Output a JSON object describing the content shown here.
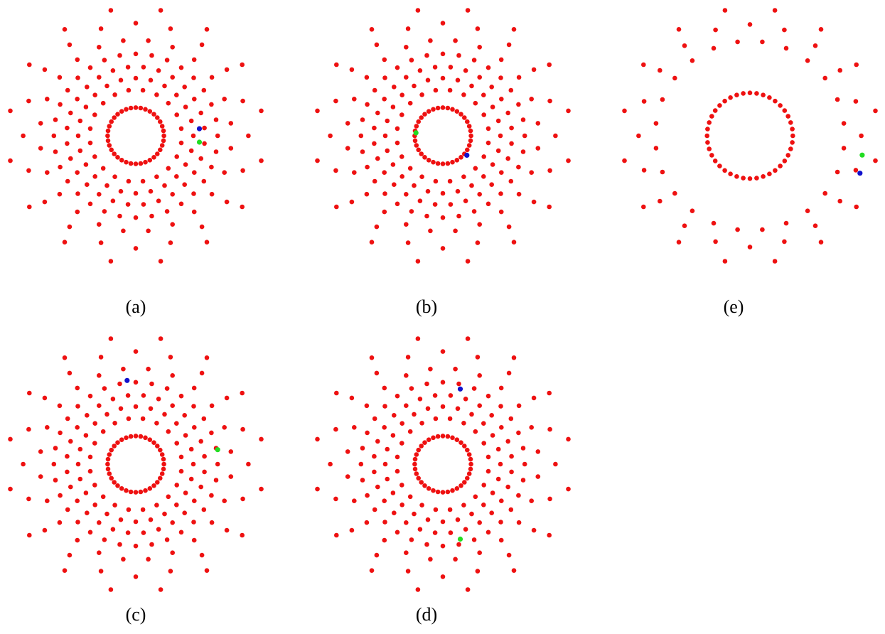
{
  "figure": {
    "panels": [
      {
        "id": "a",
        "label": "(a)",
        "inner_ring": {
          "count": 36,
          "radius": 0.22
        },
        "outer_rings": [
          {
            "radius": 0.36,
            "count": 20,
            "phase": 0.5
          },
          {
            "radius": 0.45,
            "count": 24,
            "phase": 0
          },
          {
            "radius": 0.54,
            "count": 28,
            "phase": 0.5
          },
          {
            "radius": 0.64,
            "count": 32,
            "phase": 0
          },
          {
            "radius": 0.75,
            "count": 24,
            "phase": 0.5
          },
          {
            "radius": 0.88,
            "count": 20,
            "phase": 0
          },
          {
            "radius": 1.0,
            "count": 16,
            "phase": 0.5
          }
        ],
        "markers": [
          {
            "color": "blue",
            "x": 0.497,
            "y": -0.055
          },
          {
            "color": "green",
            "x": 0.497,
            "y": 0.05
          }
        ]
      },
      {
        "id": "b",
        "label": "(b)",
        "inner_ring": {
          "count": 36,
          "radius": 0.22
        },
        "outer_rings": [
          {
            "radius": 0.36,
            "count": 20,
            "phase": 0.5
          },
          {
            "radius": 0.45,
            "count": 24,
            "phase": 0
          },
          {
            "radius": 0.54,
            "count": 28,
            "phase": 0.5
          },
          {
            "radius": 0.64,
            "count": 32,
            "phase": 0
          },
          {
            "radius": 0.75,
            "count": 24,
            "phase": 0.5
          },
          {
            "radius": 0.88,
            "count": 20,
            "phase": 0
          },
          {
            "radius": 1.0,
            "count": 16,
            "phase": 0.5
          }
        ],
        "markers": [
          {
            "color": "green",
            "x": -0.21,
            "y": -0.023
          },
          {
            "color": "blue",
            "x": 0.188,
            "y": 0.152
          }
        ]
      },
      {
        "id": "e",
        "label": "(e)",
        "inner_ring": {
          "count": 40,
          "radius": 0.335
        },
        "outer_rings": [
          {
            "radius": 0.74,
            "count": 24,
            "phase": 0.5
          },
          {
            "radius": 0.87,
            "count": 20,
            "phase": 0
          },
          {
            "radius": 1.0,
            "count": 16,
            "phase": 0.5
          }
        ],
        "markers": [
          {
            "color": "green",
            "x": 0.877,
            "y": 0.151
          },
          {
            "color": "blue",
            "x": 0.86,
            "y": 0.293
          }
        ]
      },
      {
        "id": "c",
        "label": "(c)",
        "inner_ring": {
          "count": 36,
          "radius": 0.22
        },
        "outer_rings": [
          {
            "radius": 0.36,
            "count": 20,
            "phase": 0.5
          },
          {
            "radius": 0.45,
            "count": 24,
            "phase": 0
          },
          {
            "radius": 0.54,
            "count": 28,
            "phase": 0.5
          },
          {
            "radius": 0.64,
            "count": 32,
            "phase": 0
          },
          {
            "radius": 0.75,
            "count": 24,
            "phase": 0.5
          },
          {
            "radius": 0.88,
            "count": 20,
            "phase": 0
          },
          {
            "radius": 1.0,
            "count": 16,
            "phase": 0.5
          }
        ],
        "markers": [
          {
            "color": "blue",
            "x": -0.068,
            "y": -0.654
          },
          {
            "color": "green",
            "x": 0.64,
            "y": -0.113
          }
        ]
      },
      {
        "id": "d",
        "label": "(d)",
        "inner_ring": {
          "count": 36,
          "radius": 0.22
        },
        "outer_rings": [
          {
            "radius": 0.36,
            "count": 20,
            "phase": 0.5
          },
          {
            "radius": 0.45,
            "count": 24,
            "phase": 0
          },
          {
            "radius": 0.54,
            "count": 28,
            "phase": 0.5
          },
          {
            "radius": 0.64,
            "count": 32,
            "phase": 0
          },
          {
            "radius": 0.75,
            "count": 24,
            "phase": 0.5
          },
          {
            "radius": 0.88,
            "count": 20,
            "phase": 0
          },
          {
            "radius": 1.0,
            "count": 16,
            "phase": 0.5
          }
        ],
        "markers": [
          {
            "color": "blue",
            "x": 0.136,
            "y": -0.587
          },
          {
            "color": "green",
            "x": 0.136,
            "y": 0.586
          }
        ]
      }
    ],
    "colors": {
      "dots": "#ee1111",
      "blue": "#1111cc",
      "green": "#22dd22",
      "background": "#ffffff",
      "label": "#000000"
    }
  }
}
